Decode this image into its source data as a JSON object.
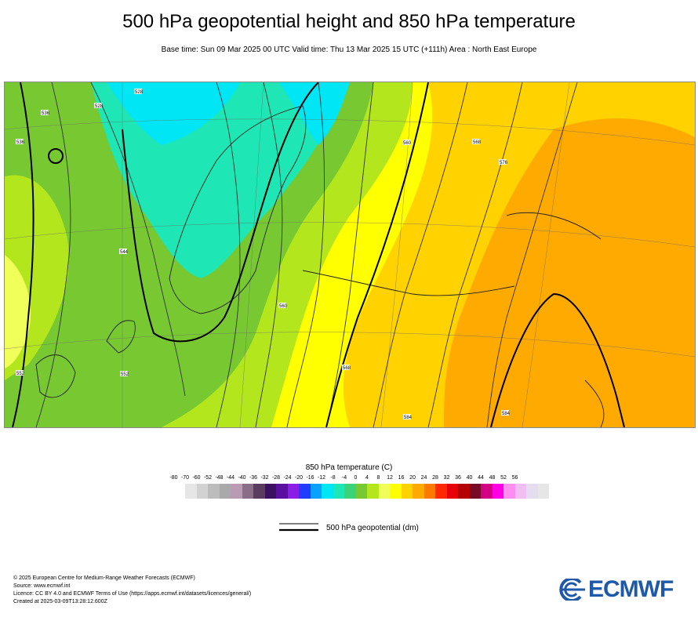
{
  "header": {
    "title": "500 hPa geopotential height and 850 hPa temperature",
    "subtitle": "Base time: Sun 09 Mar 2025 00 UTC Valid time: Thu 13 Mar 2025 15 UTC (+111h) Area : North East Europe"
  },
  "map": {
    "contour_labels": [
      "528",
      "528",
      "536",
      "536",
      "544",
      "552",
      "552",
      "560",
      "560",
      "568",
      "568",
      "576",
      "584",
      "584"
    ]
  },
  "legend": {
    "title": "850 hPa temperature (C)",
    "ticks": [
      "-80",
      "-70",
      "-60",
      "-52",
      "-48",
      "-44",
      "-40",
      "-36",
      "-32",
      "-28",
      "-24",
      "-20",
      "-16",
      "-12",
      "-8",
      "-4",
      "0",
      "4",
      "8",
      "12",
      "16",
      "20",
      "24",
      "28",
      "32",
      "36",
      "40",
      "44",
      "48",
      "52",
      "56"
    ],
    "colors": [
      "#e6e6e6",
      "#d2d2d2",
      "#bcbcbc",
      "#a9a9a9",
      "#b99bb4",
      "#8a6e88",
      "#5a3c5e",
      "#3a1060",
      "#5b0fa0",
      "#8a1de6",
      "#1f3cff",
      "#0aa0ff",
      "#00e6f5",
      "#1ee6b4",
      "#3cd278",
      "#78c832",
      "#b4e61e",
      "#f0ff5a",
      "#ffff00",
      "#ffd200",
      "#ffaa00",
      "#ff7800",
      "#ff2800",
      "#e6000a",
      "#b40000",
      "#780a28",
      "#d20082",
      "#ff00e6",
      "#ff8cf0",
      "#f0bef0",
      "#e6dcf0",
      "#e6e6e6"
    ],
    "geo_label": "500 hPa geopotential (dm)"
  },
  "footer": {
    "lines": [
      "© 2025 European Centre for Medium-Range Weather Forecasts (ECMWF)",
      "Source: www.ecmwf.int",
      "Licence: CC BY 4.0 and ECMWF Terms of Use (https://apps.ecmwf.int/datasets/licences/general/)",
      "Created at 2025-03-09T13:28:12.600Z"
    ],
    "logo_text": "ECMWF"
  }
}
